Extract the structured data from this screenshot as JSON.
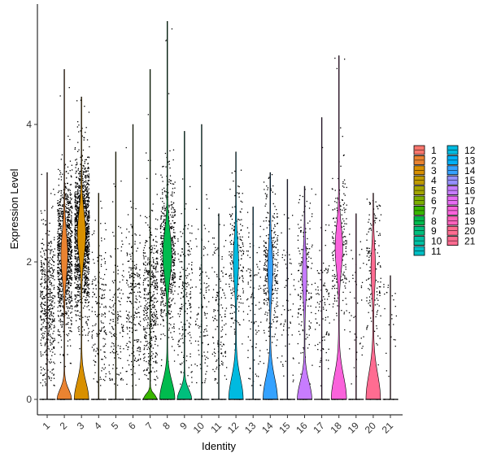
{
  "chart_data": {
    "type": "violin",
    "xlabel": "Identity",
    "ylabel": "Expression Level",
    "ylim": [
      -0.3,
      5.8
    ],
    "yticks": [
      0,
      2,
      4
    ],
    "grid": false,
    "legend_position": "right",
    "categories": [
      "1",
      "2",
      "3",
      "4",
      "5",
      "6",
      "7",
      "8",
      "9",
      "10",
      "11",
      "12",
      "13",
      "14",
      "15",
      "16",
      "17",
      "18",
      "19",
      "20",
      "21"
    ],
    "colors": [
      "#F8766D",
      "#EA8331",
      "#D89000",
      "#C09B00",
      "#A3A500",
      "#7CAE00",
      "#39B600",
      "#00BB4E",
      "#00BF7D",
      "#00C1A3",
      "#00BFC4",
      "#00BAE0",
      "#00B0F6",
      "#35A2FF",
      "#9590FF",
      "#C77CFF",
      "#E76BF3",
      "#FA62DB",
      "#FF62BC",
      "#FF6C91",
      "#FF6C91"
    ],
    "max_values": [
      3.3,
      4.8,
      4.4,
      3.0,
      3.6,
      4.0,
      4.8,
      5.5,
      3.9,
      4.0,
      2.7,
      3.6,
      2.8,
      3.3,
      3.2,
      3.1,
      4.1,
      5.0,
      2.7,
      3.0,
      1.8
    ],
    "zero_peak_widths": [
      0.0,
      0.9,
      0.9,
      0.0,
      0.0,
      0.0,
      0.9,
      0.95,
      0.9,
      0.0,
      0.0,
      0.9,
      0.0,
      0.9,
      0.0,
      0.9,
      0.0,
      0.95,
      0.0,
      0.9,
      0.0
    ],
    "zero_peak_heights": [
      0.0,
      0.25,
      0.45,
      0.0,
      0.0,
      0.0,
      0.12,
      0.45,
      0.25,
      0.0,
      0.0,
      0.55,
      0.0,
      0.55,
      0.0,
      0.45,
      0.0,
      0.6,
      0.0,
      0.65,
      0.0
    ],
    "upper_mode_center": [
      1.4,
      2.1,
      2.4,
      1.3,
      1.2,
      1.4,
      1.5,
      2.1,
      1.4,
      1.3,
      1.2,
      2.0,
      1.3,
      1.9,
      1.3,
      1.8,
      1.5,
      2.2,
      1.2,
      1.9,
      1.0
    ],
    "upper_mode_width": [
      0.0,
      0.4,
      0.5,
      0.0,
      0.0,
      0.0,
      0.0,
      0.55,
      0.0,
      0.0,
      0.0,
      0.3,
      0.0,
      0.3,
      0.0,
      0.25,
      0.0,
      0.45,
      0.0,
      0.25,
      0.0
    ],
    "point_density": [
      450,
      1100,
      1400,
      170,
      150,
      220,
      430,
      620,
      180,
      110,
      130,
      220,
      90,
      300,
      60,
      180,
      100,
      230,
      40,
      160,
      20
    ]
  },
  "legend": {
    "columns": [
      [
        "1",
        "2",
        "3",
        "4",
        "5",
        "6",
        "7",
        "8",
        "9",
        "10",
        "11"
      ],
      [
        "12",
        "13",
        "14",
        "15",
        "16",
        "17",
        "18",
        "19",
        "20",
        "21"
      ]
    ]
  }
}
